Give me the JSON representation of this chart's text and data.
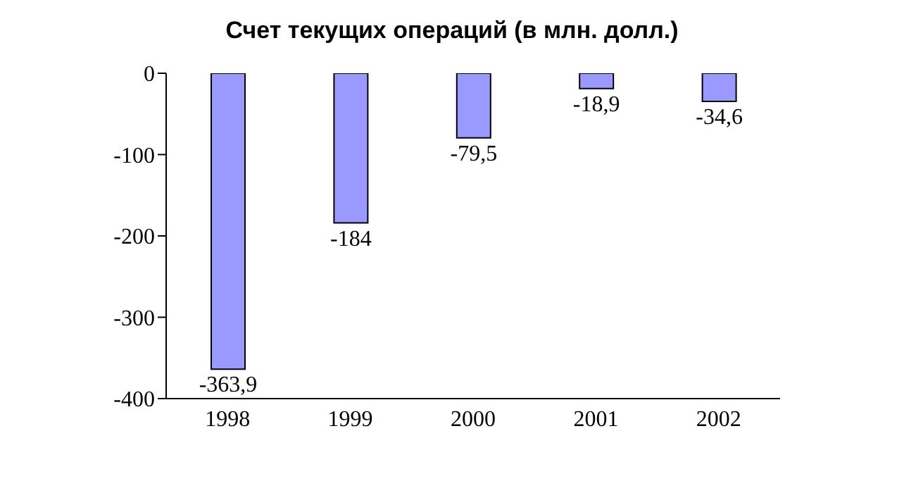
{
  "chart_data": {
    "type": "bar",
    "title": "Счет текущих операций (в млн. долл.)",
    "categories": [
      "1998",
      "1999",
      "2000",
      "2001",
      "2002"
    ],
    "values": [
      -363.9,
      -184,
      -79.5,
      -18.9,
      -34.6
    ],
    "value_labels": [
      "-363,9",
      "-184",
      "-79,5",
      "-18,9",
      "-34,6"
    ],
    "color": "#9999ff",
    "ylim": [
      -400,
      0
    ],
    "yticks": [
      -400,
      -300,
      -200,
      -100,
      0
    ],
    "grid": false,
    "legend": false
  }
}
